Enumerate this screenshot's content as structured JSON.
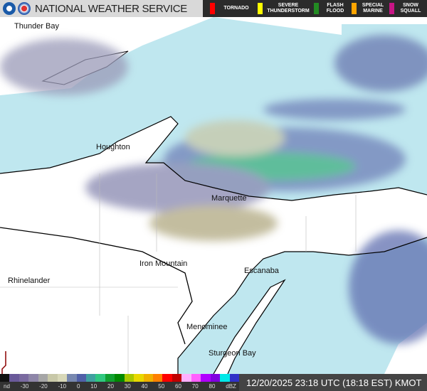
{
  "header": {
    "title": "NATIONAL WEATHER SERVICE",
    "logos": [
      "noaa-logo",
      "nws-logo"
    ]
  },
  "warnings": [
    {
      "label": "TORNADO",
      "color": "#ff0000"
    },
    {
      "label": "SEVERE THUNDERSTORM",
      "color": "#ffff00"
    },
    {
      "label": "FLASH FLOOD",
      "color": "#228b22"
    },
    {
      "label": "SPECIAL MARINE",
      "color": "#ffa500"
    },
    {
      "label": "SNOW SQUALL",
      "color": "#c71585"
    }
  ],
  "map": {
    "water_color": "#bfe7ef",
    "land_color": "#ffffff",
    "cities": [
      "Thunder Bay",
      "Houghton",
      "Marquette",
      "Iron Mountain",
      "Escanaba",
      "Rhinelander",
      "Menominee",
      "Sturgeon Bay"
    ]
  },
  "legend": {
    "ticks": [
      "nd",
      "-30",
      "-20",
      "-10",
      "0",
      "10",
      "20",
      "30",
      "40",
      "50",
      "60",
      "70",
      "80",
      "dBZ"
    ],
    "colors": [
      "#111111",
      "#6a5a9a",
      "#7a6aa0",
      "#8e86a8",
      "#a6a6a6",
      "#c8c8a8",
      "#d8d8b8",
      "#7888b0",
      "#5060a8",
      "#40a0a0",
      "#30c880",
      "#10a030",
      "#008800",
      "#a8c800",
      "#e8d800",
      "#f0b000",
      "#ff8000",
      "#ff0000",
      "#c00000",
      "#ffb0ff",
      "#ff60ff",
      "#b000ff",
      "#8000e0",
      "#00e8e8",
      "#3030c8"
    ]
  },
  "timestamp": "12/20/2025 23:18 UTC (18:18 EST) KMOT"
}
